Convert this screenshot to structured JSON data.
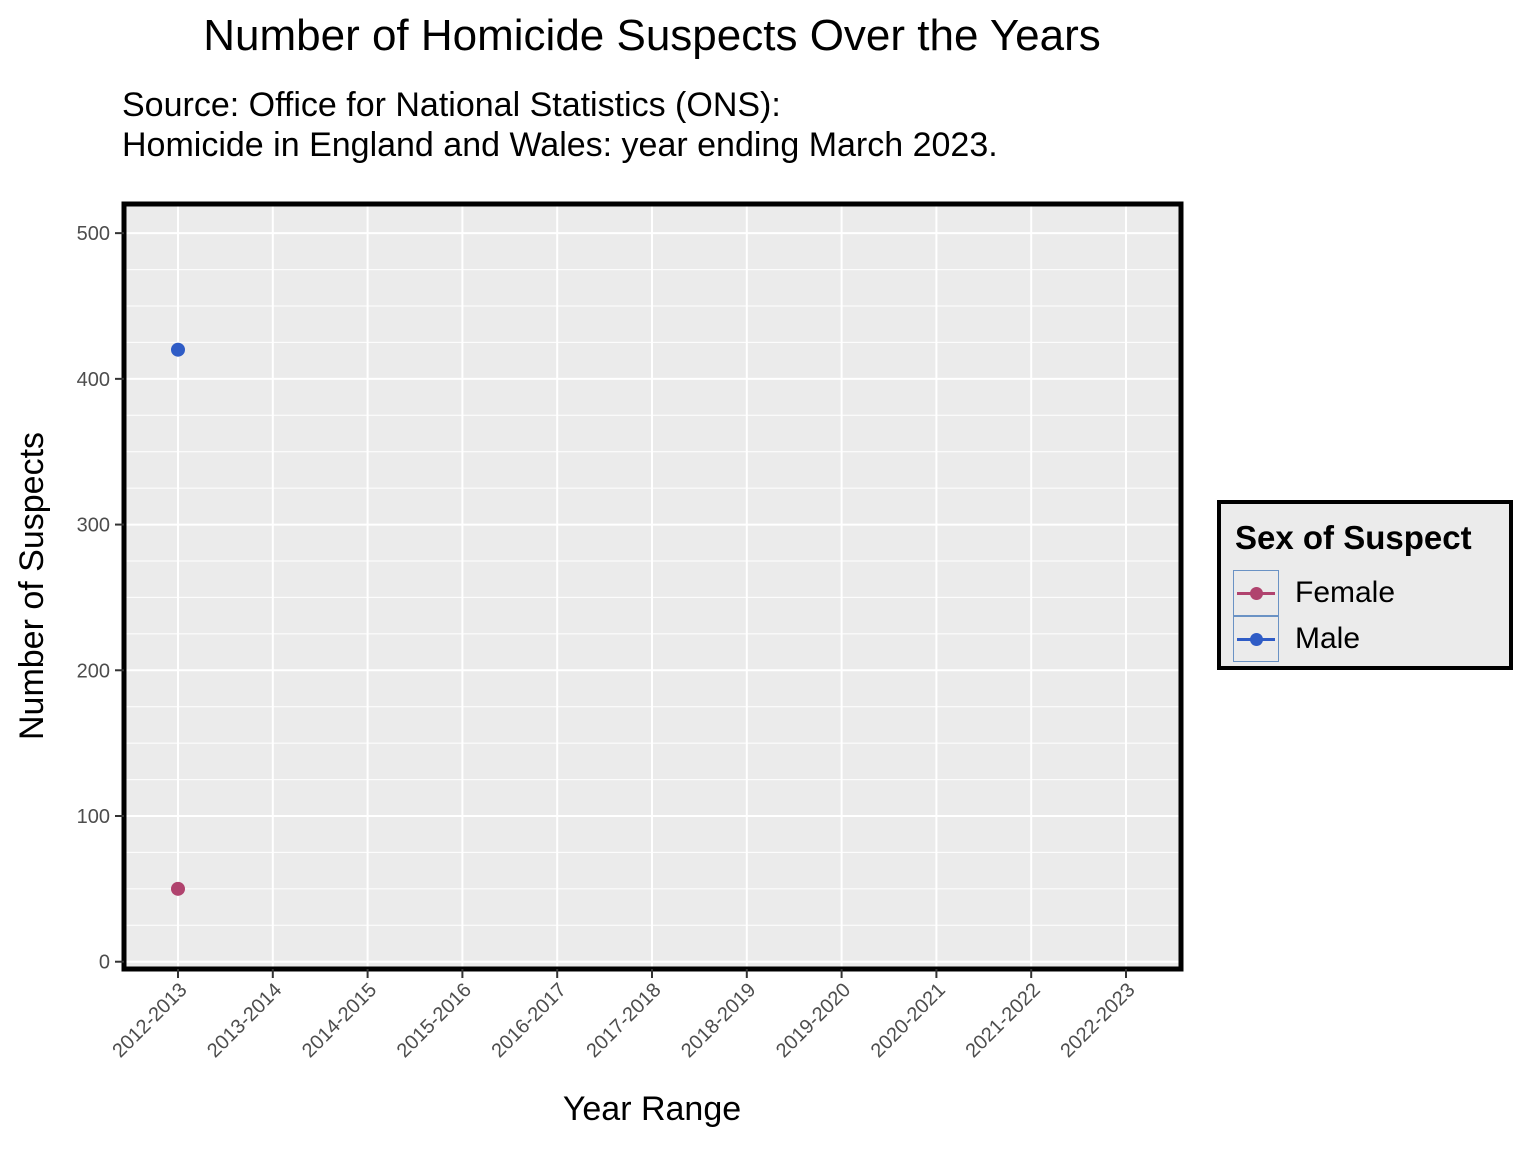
{
  "title": "Number of Homicide Suspects Over the Years",
  "subtitle_lines": [
    "Source: Office for National Statistics (ONS):",
    "Homicide in England and Wales: year ending March 2023."
  ],
  "chart_data": {
    "type": "line",
    "title": "Number of Homicide Suspects Over the Years",
    "xlabel": "Year Range",
    "ylabel": "Number of Suspects",
    "categories": [
      "2012-2013",
      "2013-2014",
      "2014-2015",
      "2015-2016",
      "2016-2017",
      "2017-2018",
      "2018-2019",
      "2019-2020",
      "2020-2021",
      "2021-2022",
      "2022-2023"
    ],
    "y_ticks": [
      0,
      100,
      200,
      300,
      400,
      500
    ],
    "ylim": [
      -5,
      520
    ],
    "grid": true,
    "legend_title": "Sex of Suspect",
    "legend_position": "right",
    "series": [
      {
        "name": "Female",
        "color": "#b0436e",
        "values": [
          50,
          null,
          null,
          null,
          null,
          null,
          null,
          null,
          null,
          null,
          null
        ]
      },
      {
        "name": "Male",
        "color": "#2f5cc6",
        "values": [
          420,
          null,
          null,
          null,
          null,
          null,
          null,
          null,
          null,
          null,
          null
        ]
      }
    ]
  }
}
